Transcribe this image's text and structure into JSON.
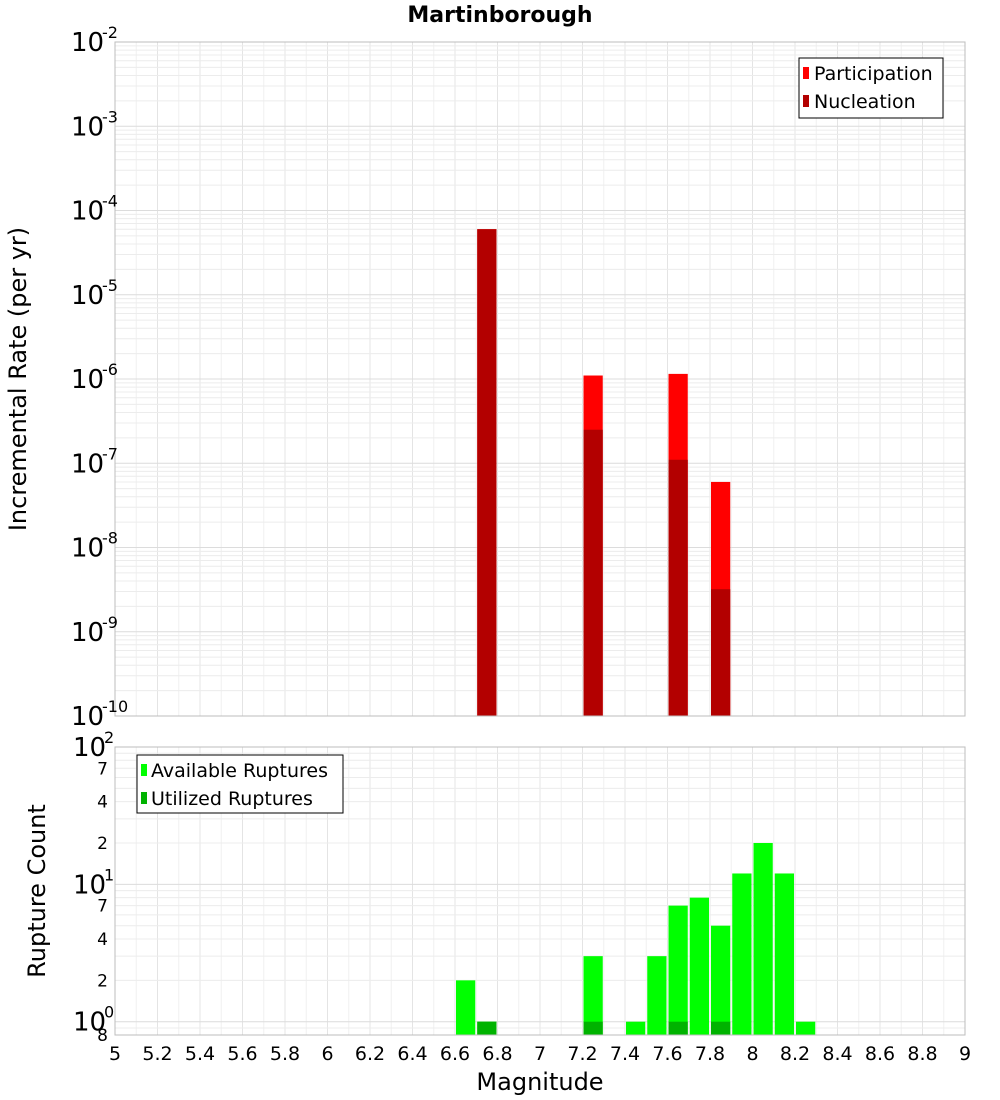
{
  "title": "Martinborough",
  "chart_data": [
    {
      "type": "bar",
      "ylabel": "Incremental Rate (per yr)",
      "yscale": "log",
      "ylim": [
        1e-10,
        0.01
      ],
      "xlim": [
        5,
        9
      ],
      "y_ticks": [
        {
          "value": 1e-10,
          "mantissa": "10",
          "exponent": "-10"
        },
        {
          "value": 1e-09,
          "mantissa": "10",
          "exponent": "-9"
        },
        {
          "value": 1e-08,
          "mantissa": "10",
          "exponent": "-8"
        },
        {
          "value": 1e-07,
          "mantissa": "10",
          "exponent": "-7"
        },
        {
          "value": 1e-06,
          "mantissa": "10",
          "exponent": "-6"
        },
        {
          "value": 1e-05,
          "mantissa": "10",
          "exponent": "-5"
        },
        {
          "value": 0.0001,
          "mantissa": "10",
          "exponent": "-4"
        },
        {
          "value": 0.001,
          "mantissa": "10",
          "exponent": "-3"
        },
        {
          "value": 0.01,
          "mantissa": "10",
          "exponent": "-2"
        }
      ],
      "legend_position": "top-right",
      "grid": true,
      "series": [
        {
          "name": "Participation",
          "color": "#ff0000",
          "points": [
            {
              "x": 6.75,
              "y": 6e-05
            },
            {
              "x": 7.25,
              "y": 1.1e-06
            },
            {
              "x": 7.65,
              "y": 1.15e-06
            },
            {
              "x": 7.85,
              "y": 6e-08
            }
          ]
        },
        {
          "name": "Nucleation",
          "color": "#b30000",
          "points": [
            {
              "x": 6.75,
              "y": 6e-05
            },
            {
              "x": 7.25,
              "y": 2.5e-07
            },
            {
              "x": 7.65,
              "y": 1.1e-07
            },
            {
              "x": 7.85,
              "y": 3.2e-09
            }
          ]
        }
      ]
    },
    {
      "type": "bar",
      "xlabel": "Magnitude",
      "ylabel": "Rupture Count",
      "yscale": "log",
      "ylim": [
        0.8,
        100
      ],
      "xlim": [
        5,
        9
      ],
      "x_ticks": [
        "5",
        "5.2",
        "5.4",
        "5.6",
        "5.8",
        "6",
        "6.2",
        "6.4",
        "6.6",
        "6.8",
        "7",
        "7.2",
        "7.4",
        "7.6",
        "7.8",
        "8",
        "8.2",
        "8.4",
        "8.6",
        "8.8",
        "9"
      ],
      "y_major_ticks": [
        {
          "value": 1,
          "mantissa": "10",
          "exponent": "0"
        },
        {
          "value": 10,
          "mantissa": "10",
          "exponent": "1"
        },
        {
          "value": 100,
          "mantissa": "10",
          "exponent": "2"
        }
      ],
      "y_minor_ticks": [
        {
          "value": 0.8,
          "label": "8"
        },
        {
          "value": 2,
          "label": "2"
        },
        {
          "value": 4,
          "label": "4"
        },
        {
          "value": 7,
          "label": "7"
        },
        {
          "value": 20,
          "label": "2"
        },
        {
          "value": 40,
          "label": "4"
        },
        {
          "value": 70,
          "label": "7"
        }
      ],
      "legend_position": "top-left",
      "grid": true,
      "series": [
        {
          "name": "Available Ruptures",
          "color": "#00ff00",
          "points": [
            {
              "x": 6.65,
              "y": 2
            },
            {
              "x": 6.75,
              "y": 1
            },
            {
              "x": 7.25,
              "y": 3
            },
            {
              "x": 7.45,
              "y": 1
            },
            {
              "x": 7.55,
              "y": 3
            },
            {
              "x": 7.65,
              "y": 7
            },
            {
              "x": 7.75,
              "y": 8
            },
            {
              "x": 7.85,
              "y": 5
            },
            {
              "x": 7.95,
              "y": 12
            },
            {
              "x": 8.05,
              "y": 20
            },
            {
              "x": 8.15,
              "y": 12
            },
            {
              "x": 8.25,
              "y": 1
            }
          ]
        },
        {
          "name": "Utilized Ruptures",
          "color": "#00b300",
          "points": [
            {
              "x": 6.75,
              "y": 1
            },
            {
              "x": 7.25,
              "y": 1
            },
            {
              "x": 7.65,
              "y": 1
            },
            {
              "x": 7.85,
              "y": 1
            }
          ]
        }
      ]
    }
  ]
}
